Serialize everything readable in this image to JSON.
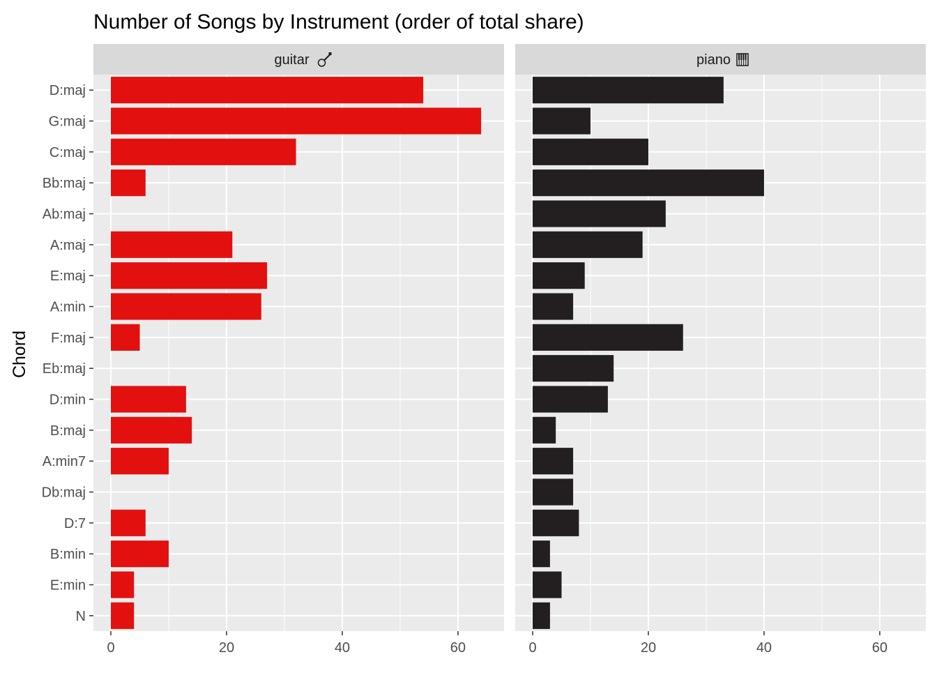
{
  "chart_data": {
    "type": "bar",
    "orientation": "horizontal",
    "title": "Number of Songs by Instrument (order of total share)",
    "xlabel": "",
    "ylabel": "Chord",
    "xlim": [
      0,
      67
    ],
    "x_ticks": [
      0,
      20,
      40,
      60
    ],
    "grid": true,
    "legend": "none",
    "categories": [
      "D:maj",
      "G:maj",
      "C:maj",
      "Bb:maj",
      "Ab:maj",
      "A:maj",
      "E:maj",
      "A:min",
      "F:maj",
      "Eb:maj",
      "D:min",
      "B:maj",
      "A:min7",
      "Db:maj",
      "D:7",
      "B:min",
      "E:min",
      "N"
    ],
    "panels": [
      {
        "label": "guitar",
        "icon": "guitar-icon",
        "color": "#E31010",
        "values": [
          54,
          64,
          32,
          6,
          null,
          21,
          27,
          26,
          5,
          null,
          13,
          14,
          10,
          null,
          6,
          10,
          4,
          4
        ]
      },
      {
        "label": "piano",
        "icon": "piano-keys-icon",
        "color": "#231F20",
        "values": [
          33,
          10,
          20,
          40,
          23,
          19,
          9,
          7,
          26,
          14,
          13,
          4,
          7,
          7,
          8,
          3,
          5,
          3
        ]
      }
    ]
  }
}
